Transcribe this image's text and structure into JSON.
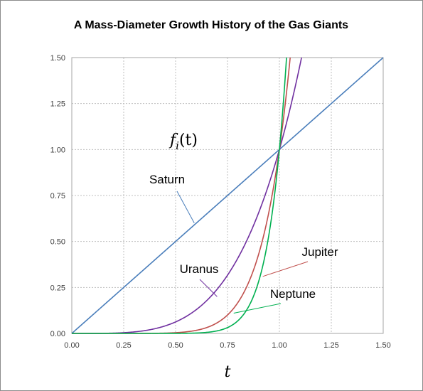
{
  "chart_data": {
    "type": "line",
    "title": "A Mass-Diameter Growth History of the Gas Giants",
    "xlabel": "t",
    "ylabel": "",
    "xlim": [
      0,
      1.5
    ],
    "ylim": [
      0,
      1.5
    ],
    "x_ticks": [
      "0.00",
      "0.25",
      "0.50",
      "0.75",
      "1.00",
      "1.25",
      "1.50"
    ],
    "y_ticks": [
      "0.00",
      "0.25",
      "0.50",
      "0.75",
      "1.00",
      "1.25",
      "1.50"
    ],
    "grid": "dashed",
    "annotation": {
      "function_label": "f",
      "function_subscript": "i",
      "function_arg": "(t)"
    },
    "series": [
      {
        "name": "Saturn",
        "color": "#4a7ebb",
        "exponent": 1,
        "label_anchor": [
          0.59,
          0.6
        ]
      },
      {
        "name": "Uranus",
        "color": "#7030a0",
        "exponent": 4,
        "label_anchor": [
          0.7,
          0.2
        ]
      },
      {
        "name": "Jupiter",
        "color": "#c0504d",
        "exponent": 8,
        "label_anchor": [
          0.92,
          0.31
        ]
      },
      {
        "name": "Neptune",
        "color": "#00b050",
        "exponent": 12,
        "label_anchor": [
          0.78,
          0.11
        ]
      }
    ]
  }
}
